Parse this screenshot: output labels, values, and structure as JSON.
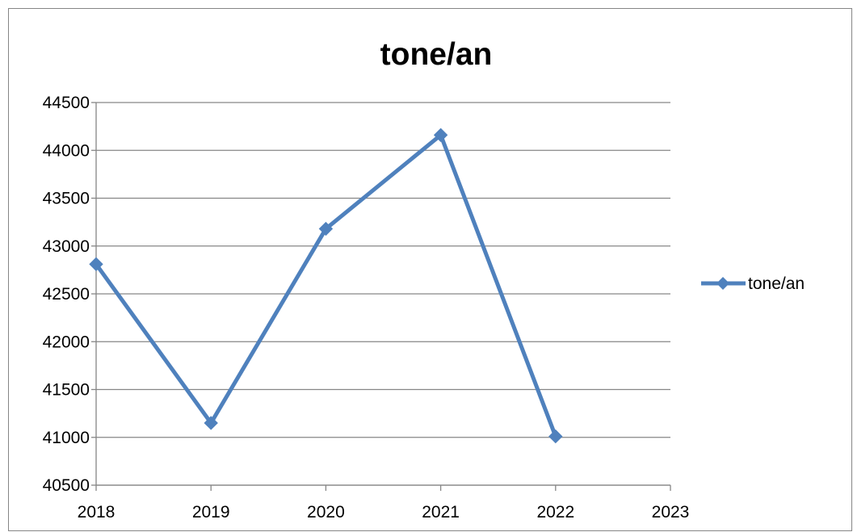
{
  "chart_data": {
    "type": "line",
    "title": "tone/an",
    "xlabel": "",
    "ylabel": "",
    "x": [
      "2018",
      "2019",
      "2020",
      "2021",
      "2022"
    ],
    "x_ticks": [
      "2018",
      "2019",
      "2020",
      "2021",
      "2022",
      "2023"
    ],
    "series": [
      {
        "name": "tone/an",
        "values": [
          42810,
          41150,
          43180,
          44160,
          41010
        ],
        "marker": "diamond"
      }
    ],
    "ylim": [
      40500,
      44500
    ],
    "y_ticks": [
      40500,
      41000,
      41500,
      42000,
      42500,
      43000,
      43500,
      44000,
      44500
    ],
    "grid": "horizontal",
    "legend_position": "right",
    "colors": {
      "series": "#4f81bd",
      "grid": "#868686",
      "axis": "#868686",
      "frame": "#868686"
    }
  }
}
